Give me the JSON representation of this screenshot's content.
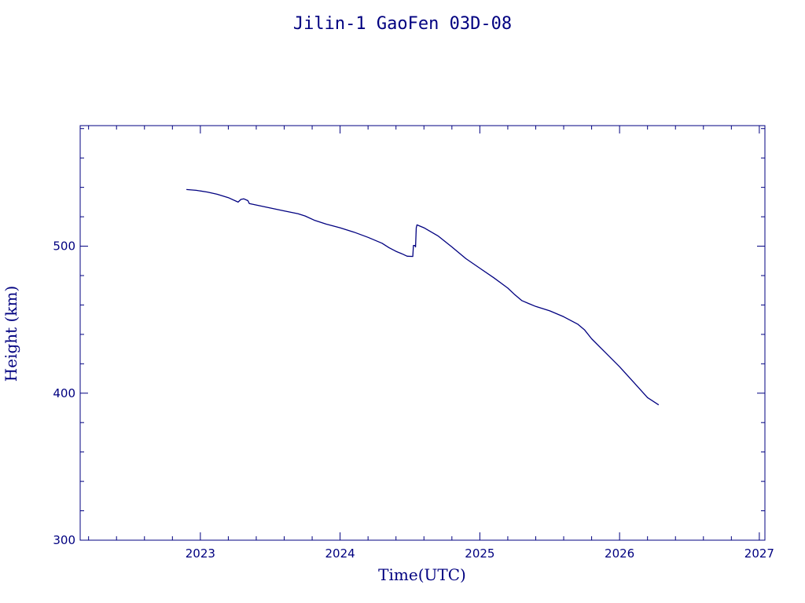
{
  "chart_data": {
    "type": "line",
    "title": "Jilin-1 GaoFen 03D-08",
    "xlabel": "Time(UTC)",
    "ylabel": "Height (km)",
    "xlim": [
      2022.14,
      2027.04
    ],
    "ylim": [
      300,
      582
    ],
    "x_ticks": [
      2023,
      2024,
      2025,
      2026,
      2027
    ],
    "y_ticks": [
      300,
      400,
      500
    ],
    "x_minor_step": 0.2,
    "y_minor_step": 20,
    "grid": false,
    "color": "#000080",
    "series": [
      {
        "values": [
          [
            2022.9,
            538.5
          ],
          [
            2022.97,
            538.0
          ],
          [
            2023.05,
            536.8
          ],
          [
            2023.12,
            535.3
          ],
          [
            2023.2,
            533.0
          ],
          [
            2023.27,
            530.0
          ],
          [
            2023.29,
            531.8
          ],
          [
            2023.31,
            532.2
          ],
          [
            2023.34,
            531.0
          ],
          [
            2023.35,
            529.0
          ],
          [
            2023.42,
            527.6
          ],
          [
            2023.5,
            526.0
          ],
          [
            2023.6,
            524.0
          ],
          [
            2023.7,
            522.0
          ],
          [
            2023.75,
            520.5
          ],
          [
            2023.82,
            517.5
          ],
          [
            2023.9,
            515.0
          ],
          [
            2024.0,
            512.5
          ],
          [
            2024.1,
            509.5
          ],
          [
            2024.2,
            506.0
          ],
          [
            2024.3,
            502.0
          ],
          [
            2024.35,
            499.0
          ],
          [
            2024.4,
            496.5
          ],
          [
            2024.45,
            494.5
          ],
          [
            2024.48,
            493.2
          ],
          [
            2024.52,
            493.0
          ],
          [
            2024.525,
            500.5
          ],
          [
            2024.535,
            500.5
          ],
          [
            2024.54,
            499.5
          ],
          [
            2024.545,
            512.5
          ],
          [
            2024.55,
            514.5
          ],
          [
            2024.6,
            512.5
          ],
          [
            2024.7,
            507.0
          ],
          [
            2024.8,
            499.5
          ],
          [
            2024.9,
            491.5
          ],
          [
            2025.0,
            485.0
          ],
          [
            2025.1,
            478.5
          ],
          [
            2025.2,
            471.5
          ],
          [
            2025.25,
            467.0
          ],
          [
            2025.3,
            463.0
          ],
          [
            2025.35,
            461.0
          ],
          [
            2025.4,
            459.0
          ],
          [
            2025.5,
            456.0
          ],
          [
            2025.6,
            452.0
          ],
          [
            2025.7,
            447.0
          ],
          [
            2025.75,
            443.0
          ],
          [
            2025.8,
            437.0
          ],
          [
            2025.9,
            427.5
          ],
          [
            2026.0,
            418.0
          ],
          [
            2026.1,
            407.5
          ],
          [
            2026.2,
            397.0
          ],
          [
            2026.28,
            392.0
          ]
        ]
      }
    ]
  }
}
